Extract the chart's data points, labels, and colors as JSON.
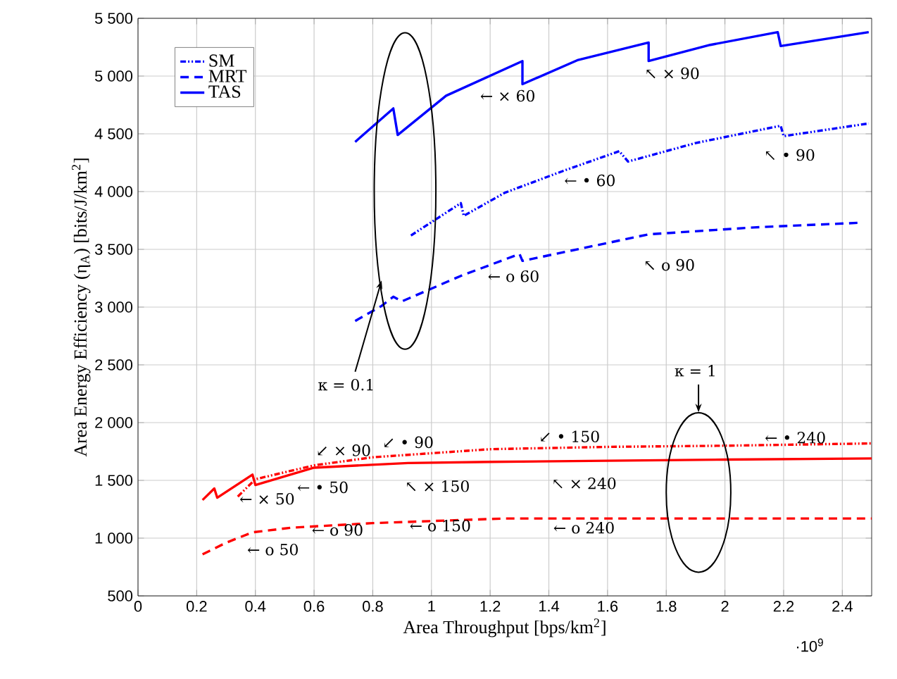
{
  "chart_data": {
    "type": "line",
    "xlabel": "Area Throughput [bps/km$^{2}$]",
    "ylabel": "Area Energy Efficiency (η$_{A}$) [bits/J/km$^{2}$]",
    "xlim": [
      0,
      2.5
    ],
    "ylim": [
      500,
      5500
    ],
    "xticks": [
      0,
      0.2,
      0.4,
      0.6,
      0.8,
      1,
      1.2,
      1.4,
      1.6,
      1.8,
      2,
      2.2,
      2.4
    ],
    "yticks": [
      500,
      {
        "value": 1000,
        "label": "1 000"
      },
      {
        "value": 1500,
        "label": "1 500"
      },
      {
        "value": 2000,
        "label": "2 000"
      },
      {
        "value": 2500,
        "label": "2 500"
      },
      {
        "value": 3000,
        "label": "3 000"
      },
      {
        "value": 3500,
        "label": "3 500"
      },
      {
        "value": 4000,
        "label": "4 000"
      },
      {
        "value": 4500,
        "label": "4 500"
      },
      {
        "value": 5000,
        "label": "5 000"
      },
      {
        "value": 5500,
        "label": "5 500"
      }
    ],
    "grid": true,
    "legend": "top left",
    "series": [
      {
        "name": "SM",
        "color": "#0000ff",
        "line_style": "dashdot",
        "x": [
          0.93,
          1.1,
          1.11,
          1.25,
          1.45,
          1.64,
          1.67,
          1.9,
          2.19,
          2.2,
          2.49
        ],
        "values": [
          3620,
          3900,
          3790,
          3990,
          4180,
          4350,
          4260,
          4420,
          4570,
          4480,
          4590
        ]
      },
      {
        "name": "MRT",
        "color": "#0000ff",
        "line_style": "dashed",
        "x": [
          0.74,
          0.83,
          0.87,
          0.9,
          1.1,
          1.3,
          1.31,
          1.74,
          2.1,
          2.46
        ],
        "values": [
          2880,
          3010,
          3090,
          3050,
          3270,
          3460,
          3400,
          3630,
          3690,
          3730
        ]
      },
      {
        "name": "TAS",
        "color": "#0000ff",
        "line_style": "solid",
        "x": [
          0.74,
          0.87,
          0.885,
          1.05,
          1.31,
          1.31,
          1.5,
          1.74,
          1.74,
          1.95,
          2.18,
          2.19,
          2.49
        ],
        "values": [
          4430,
          4720,
          4490,
          4830,
          5130,
          4930,
          5140,
          5290,
          5130,
          5270,
          5380,
          5260,
          5380
        ]
      },
      {
        "color": "#ff0000",
        "line_style": "dashdot",
        "x": [
          0.34,
          0.4,
          0.6,
          0.8,
          1.2,
          1.6,
          2.0,
          2.5
        ],
        "values": [
          1360,
          1510,
          1630,
          1700,
          1770,
          1790,
          1800,
          1820
        ]
      },
      {
        "color": "#ff0000",
        "line_style": "dashed",
        "x": [
          0.22,
          0.3,
          0.39,
          0.52,
          0.8,
          1.25,
          1.6,
          2.0,
          2.5
        ],
        "values": [
          860,
          960,
          1050,
          1090,
          1130,
          1170,
          1170,
          1170,
          1170
        ]
      },
      {
        "color": "#ff0000",
        "line_style": "solid",
        "x": [
          0.22,
          0.26,
          0.27,
          0.39,
          0.4,
          0.6,
          0.92,
          1.2,
          1.6,
          2.0,
          2.5
        ],
        "values": [
          1330,
          1430,
          1350,
          1550,
          1460,
          1610,
          1650,
          1660,
          1670,
          1680,
          1690
        ]
      }
    ],
    "annotations": [
      "← × 60",
      "↖ × 90",
      "← • 60",
      "↖ • 90",
      "← o 60",
      "↖ o 90",
      "← o 50",
      "← o 90",
      "← o 150",
      "← o 240",
      "← × 50",
      "← • 50",
      "↙ × 90",
      "↙ • 90",
      "↖ × 150",
      "↙ • 150",
      "↖ × 240",
      "← • 240",
      "κ = 0.1",
      "κ = 1",
      "·10$^{9}$"
    ]
  }
}
